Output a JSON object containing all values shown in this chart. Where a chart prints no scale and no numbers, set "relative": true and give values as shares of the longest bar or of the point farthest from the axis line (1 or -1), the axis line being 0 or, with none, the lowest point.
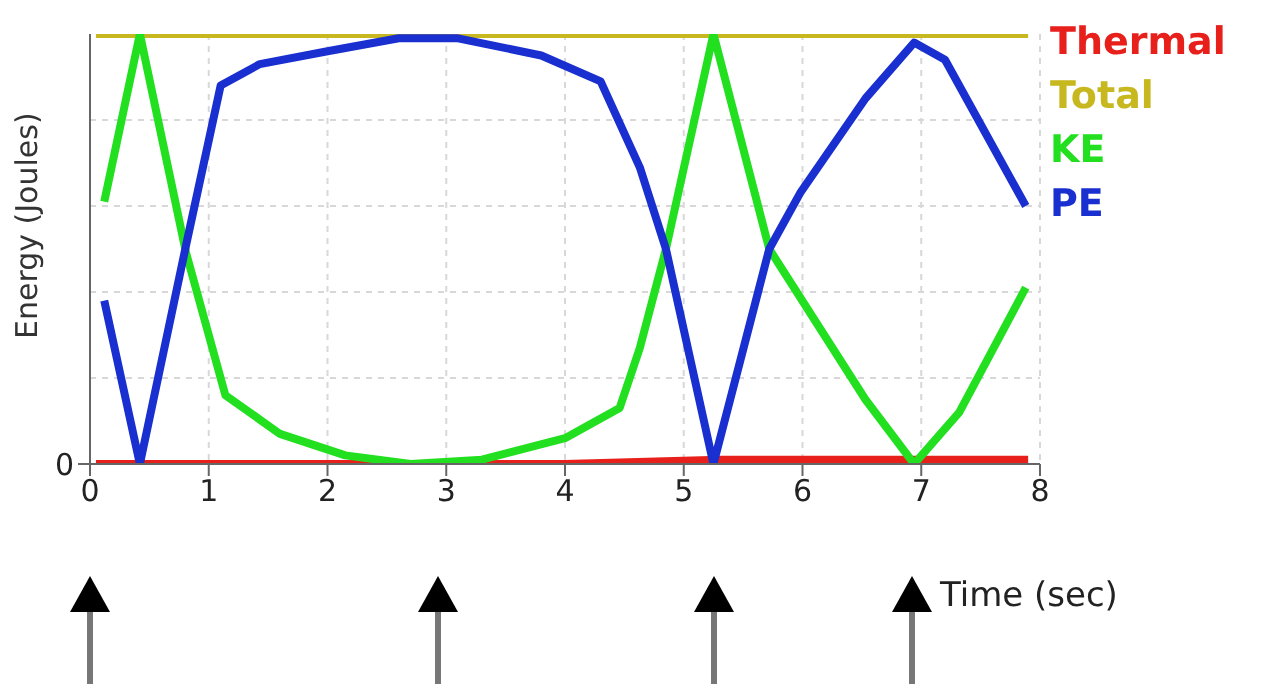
{
  "chart_data": {
    "type": "line",
    "xlabel": "Time (sec)",
    "ylabel": "Energy (Joules)",
    "relative": true,
    "xlim": [
      0,
      8
    ],
    "xticks": [
      0,
      1,
      2,
      3,
      4,
      5,
      6,
      7,
      8
    ],
    "grid": true,
    "legend": "right",
    "marker": "none",
    "line_style": "solid",
    "annotations": [
      "0"
    ],
    "series": [
      {
        "name": "Thermal",
        "color": "#e8201c",
        "x": [
          0.05,
          2,
          4,
          5.3,
          7.9
        ],
        "values": [
          0,
          0,
          0,
          0.01,
          0.01
        ]
      },
      {
        "name": "Total",
        "color": "#c8b820",
        "x": [
          0.05,
          7.9
        ],
        "values": [
          1,
          1
        ]
      },
      {
        "name": "KE",
        "color": "#22e020",
        "x": [
          0.12,
          0.42,
          0.81,
          1.14,
          1.6,
          2.15,
          2.7,
          3.3,
          4.0,
          4.46,
          4.63,
          4.85,
          5.25,
          5.72,
          6.53,
          6.94,
          7.32,
          7.88
        ],
        "values": [
          0.61,
          1,
          0.49,
          0.16,
          0.07,
          0.02,
          0,
          0.01,
          0.06,
          0.13,
          0.27,
          0.5,
          1,
          0.5,
          0.15,
          0,
          0.12,
          0.41
        ]
      },
      {
        "name": "PE",
        "color": "#1a2fd0",
        "x": [
          0.12,
          0.42,
          0.81,
          1.1,
          1.43,
          2.0,
          2.6,
          3.1,
          3.8,
          4.3,
          4.63,
          4.85,
          5.25,
          5.72,
          5.98,
          6.53,
          6.94,
          7.2,
          7.88
        ],
        "values": [
          0.38,
          0,
          0.51,
          0.88,
          0.93,
          0.96,
          0.99,
          0.99,
          0.95,
          0.89,
          0.69,
          0.5,
          0,
          0.5,
          0.63,
          0.85,
          0.98,
          0.94,
          0.6
        ]
      }
    ]
  }
}
